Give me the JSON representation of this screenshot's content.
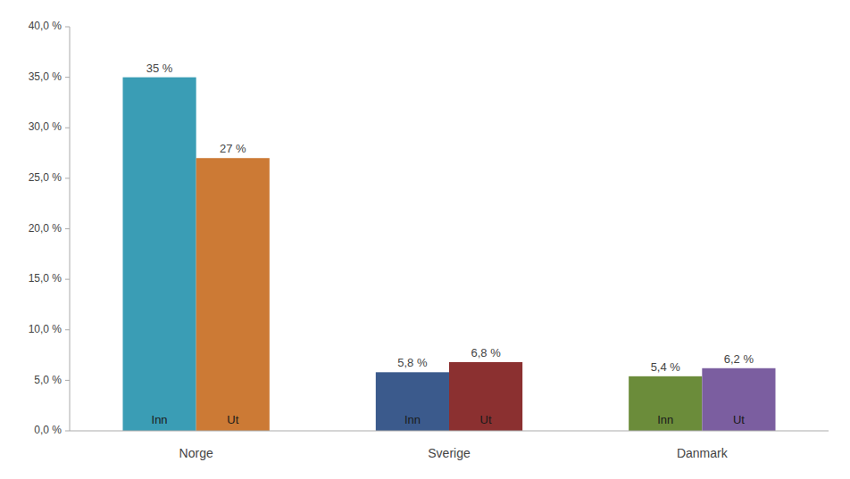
{
  "chart_data": {
    "type": "bar",
    "categories": [
      "Norge",
      "Sverige",
      "Danmark"
    ],
    "series": [
      {
        "name": "Inn",
        "values": [
          35.0,
          5.8,
          5.4
        ],
        "value_labels": [
          "35 %",
          "5,8 %",
          "5,4 %"
        ],
        "colors": [
          "#3a9db5",
          "#3b5a8c",
          "#6b8c3a"
        ]
      },
      {
        "name": "Ut",
        "values": [
          27.0,
          6.8,
          6.2
        ],
        "value_labels": [
          "27 %",
          "6,8 %",
          "6,2 %"
        ],
        "colors": [
          "#cc7a35",
          "#8b3030",
          "#7b5ea0"
        ]
      }
    ],
    "ylim": [
      0,
      40
    ],
    "yticks": [
      {
        "value": 0,
        "label": "0,0 %"
      },
      {
        "value": 5,
        "label": "5,0 %"
      },
      {
        "value": 10,
        "label": "10,0 %"
      },
      {
        "value": 15,
        "label": "15,0 %"
      },
      {
        "value": 20,
        "label": "20,0 %"
      },
      {
        "value": 25,
        "label": "25,0 %"
      },
      {
        "value": 30,
        "label": "30,0 %"
      },
      {
        "value": 35,
        "label": "35,0 %"
      },
      {
        "value": 40,
        "label": "40,0 %"
      }
    ],
    "grid": false,
    "data_labels": true
  }
}
